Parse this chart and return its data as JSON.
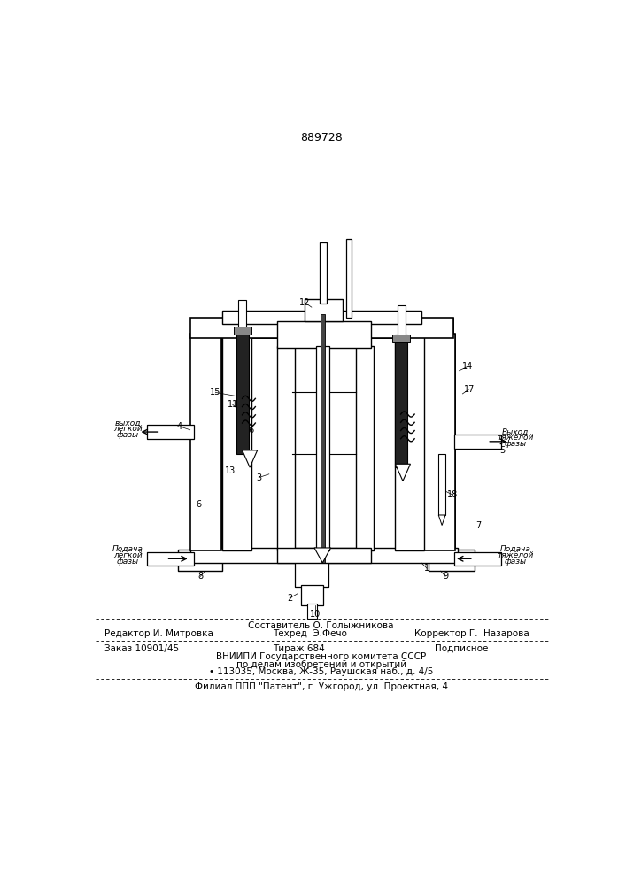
{
  "patent_number": "889728",
  "bg_color": "#ffffff",
  "line_color": "#000000",
  "fig_width": 7.07,
  "fig_height": 10.0,
  "footer": {
    "line1_center": "Составитель О. Голыжникова",
    "line2_left": "Редактор И. Митровка",
    "line2_center": "Техред  Э.Фечо",
    "line2_right": "Корректор Г.  Назарова",
    "line3_left": "Заказ 10901/45",
    "line3_center": "Тираж 684",
    "line3_right": "Подписное",
    "line4_center": "ВНИИПИ Государственного комитета СССР",
    "line5_center": "по делам изобретений и открытий",
    "line6_center": "• 113035, Москва, Ж-35, Раушская наб., д. 4/5",
    "line7_center": "Филиал ППП \"Патент\", г. Ужгород, ул. Проектная, 4"
  }
}
